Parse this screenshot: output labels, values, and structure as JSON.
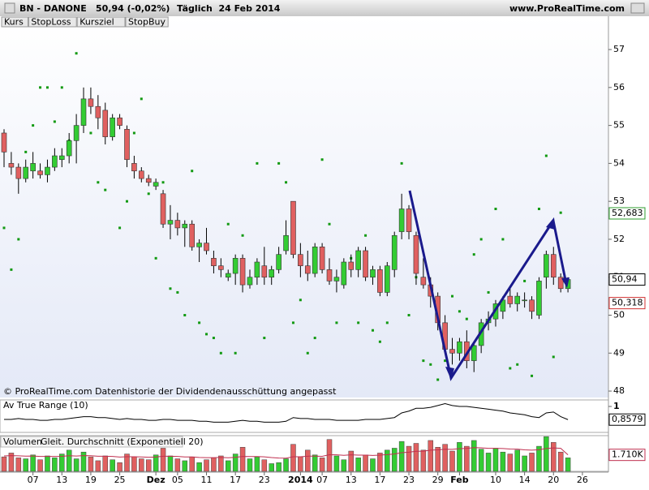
{
  "header": {
    "symbol": "BN - DANONE",
    "quote": "50,94 (-0,02%)",
    "period": "Täglich  24 Feb 2014",
    "site": "www.ProRealTime.com"
  },
  "legend": [
    "Kurs",
    "StopLoss",
    "Kursziel",
    "StopBuy"
  ],
  "footer_note": "© ProRealTime.com  Datenhistorie der Dividendenausschüttung angepasst",
  "chart_data": [
    {
      "type": "candlestick",
      "up_color": "#33cc33",
      "down_color": "#e06060",
      "target_color": "#119911",
      "xlim": [
        -0.56,
        83.6
      ],
      "ylim": [
        47.83,
        57.6
      ],
      "yticks": [
        48,
        49,
        50,
        51,
        52,
        53,
        54,
        55,
        56,
        57
      ],
      "xticks": [
        {
          "value": 4,
          "label": "07"
        },
        {
          "value": 8,
          "label": "13"
        },
        {
          "value": 12,
          "label": "19"
        },
        {
          "value": 16,
          "label": "25"
        },
        {
          "value": 21,
          "label": "Dez"
        },
        {
          "value": 24,
          "label": "05"
        },
        {
          "value": 28,
          "label": "11"
        },
        {
          "value": 32,
          "label": "17"
        },
        {
          "value": 36,
          "label": "23"
        },
        {
          "value": 41,
          "label": "2014"
        },
        {
          "value": 44,
          "label": "07"
        },
        {
          "value": 48,
          "label": "13"
        },
        {
          "value": 52,
          "label": "17"
        },
        {
          "value": 56,
          "label": "23"
        },
        {
          "value": 60,
          "label": "29"
        },
        {
          "value": 63,
          "label": "Feb"
        },
        {
          "value": 68,
          "label": "10"
        },
        {
          "value": 72,
          "label": "14"
        },
        {
          "value": 76,
          "label": "20"
        },
        {
          "value": 80,
          "label": "26"
        }
      ],
      "candles": [
        [
          54.8,
          54.9,
          53.9,
          54.3
        ],
        [
          54.0,
          54.3,
          53.7,
          53.9
        ],
        [
          53.9,
          54.0,
          53.2,
          53.6
        ],
        [
          53.6,
          54.1,
          53.5,
          53.9
        ],
        [
          53.8,
          54.3,
          53.6,
          54.0
        ],
        [
          53.8,
          54.0,
          53.6,
          53.7
        ],
        [
          53.7,
          54.1,
          53.5,
          53.9
        ],
        [
          53.9,
          54.4,
          53.8,
          54.2
        ],
        [
          54.1,
          54.4,
          53.9,
          54.2
        ],
        [
          54.2,
          54.8,
          54.0,
          54.6
        ],
        [
          54.6,
          55.3,
          54.0,
          55.0
        ],
        [
          55.0,
          56.0,
          54.8,
          55.7
        ],
        [
          55.7,
          56.0,
          55.3,
          55.5
        ],
        [
          55.5,
          55.8,
          54.9,
          55.2
        ],
        [
          55.4,
          55.6,
          54.5,
          54.7
        ],
        [
          54.7,
          55.3,
          54.6,
          55.2
        ],
        [
          55.2,
          55.3,
          54.9,
          55.0
        ],
        [
          54.9,
          55.0,
          53.9,
          54.1
        ],
        [
          54.0,
          54.2,
          53.6,
          53.8
        ],
        [
          53.8,
          53.9,
          53.5,
          53.6
        ],
        [
          53.6,
          53.7,
          53.4,
          53.5
        ],
        [
          53.4,
          53.6,
          53.3,
          53.5
        ],
        [
          53.2,
          53.3,
          52.3,
          52.4
        ],
        [
          52.4,
          52.9,
          52.0,
          52.5
        ],
        [
          52.5,
          52.7,
          52.1,
          52.3
        ],
        [
          52.3,
          52.5,
          51.8,
          52.4
        ],
        [
          52.4,
          52.5,
          51.7,
          51.8
        ],
        [
          51.8,
          52.0,
          51.4,
          51.9
        ],
        [
          51.9,
          52.3,
          51.6,
          51.7
        ],
        [
          51.5,
          51.7,
          51.1,
          51.3
        ],
        [
          51.3,
          51.5,
          51.0,
          51.2
        ],
        [
          51.0,
          51.2,
          50.9,
          51.1
        ],
        [
          51.1,
          51.6,
          50.8,
          51.5
        ],
        [
          51.5,
          51.6,
          50.6,
          50.8
        ],
        [
          50.8,
          51.2,
          50.7,
          51.0
        ],
        [
          51.0,
          51.5,
          50.8,
          51.4
        ],
        [
          51.3,
          51.8,
          50.8,
          51.0
        ],
        [
          51.0,
          51.3,
          50.8,
          51.2
        ],
        [
          51.2,
          51.8,
          51.1,
          51.6
        ],
        [
          51.7,
          52.5,
          51.6,
          52.1
        ],
        [
          53.0,
          53.0,
          51.5,
          51.6
        ],
        [
          51.6,
          51.9,
          51.0,
          51.3
        ],
        [
          51.3,
          51.7,
          50.9,
          51.1
        ],
        [
          51.1,
          51.9,
          51.0,
          51.8
        ],
        [
          51.8,
          51.9,
          51.1,
          51.2
        ],
        [
          51.2,
          51.5,
          50.8,
          50.9
        ],
        [
          50.9,
          51.2,
          50.6,
          51.0
        ],
        [
          50.8,
          51.5,
          50.7,
          51.4
        ],
        [
          51.4,
          51.6,
          51.0,
          51.2
        ],
        [
          51.2,
          51.8,
          51.0,
          51.7
        ],
        [
          51.7,
          51.8,
          50.9,
          51.0
        ],
        [
          51.0,
          51.3,
          50.8,
          51.2
        ],
        [
          51.2,
          51.3,
          50.5,
          50.6
        ],
        [
          50.6,
          51.4,
          50.5,
          51.3
        ],
        [
          51.2,
          52.2,
          51.0,
          52.1
        ],
        [
          52.2,
          53.2,
          52.0,
          52.8
        ],
        [
          52.8,
          52.9,
          52.0,
          52.2
        ],
        [
          52.1,
          52.2,
          50.8,
          51.1
        ],
        [
          51.0,
          51.5,
          50.7,
          50.8
        ],
        [
          50.8,
          51.0,
          50.2,
          50.5
        ],
        [
          50.5,
          50.6,
          49.6,
          49.8
        ],
        [
          49.8,
          50.0,
          49.0,
          49.1
        ],
        [
          49.1,
          49.4,
          48.7,
          49.0
        ],
        [
          49.0,
          49.4,
          48.8,
          49.3
        ],
        [
          49.3,
          49.6,
          48.6,
          48.8
        ],
        [
          48.8,
          49.3,
          48.5,
          49.2
        ],
        [
          49.2,
          49.9,
          49.0,
          49.8
        ],
        [
          49.8,
          50.1,
          49.6,
          49.9
        ],
        [
          49.9,
          50.4,
          49.7,
          50.3
        ],
        [
          50.1,
          50.5,
          49.9,
          50.4
        ],
        [
          50.5,
          50.7,
          50.2,
          50.3
        ],
        [
          50.3,
          50.6,
          50.1,
          50.5
        ],
        [
          50.4,
          50.6,
          50.2,
          50.4
        ],
        [
          50.4,
          50.5,
          49.9,
          50.1
        ],
        [
          50.0,
          51.0,
          49.9,
          50.9
        ],
        [
          51.0,
          51.7,
          50.7,
          51.6
        ],
        [
          51.6,
          51.8,
          50.8,
          51.0
        ],
        [
          51.0,
          51.1,
          50.6,
          50.7
        ],
        [
          50.7,
          51.0,
          50.6,
          50.94
        ]
      ],
      "kursziel": [
        52.3,
        51.2,
        52.0,
        54.3,
        55.0,
        56.0,
        56.0,
        55.1,
        56.0,
        54.6,
        56.9,
        55.2,
        54.8,
        53.5,
        53.3,
        null,
        52.3,
        53.0,
        54.8,
        55.7,
        53.2,
        51.5,
        53.5,
        50.7,
        50.6,
        50.0,
        53.8,
        49.8,
        49.5,
        49.4,
        49.0,
        52.4,
        49.0,
        52.1,
        null,
        54.0,
        49.4,
        null,
        54.0,
        53.5,
        49.8,
        50.4,
        49.0,
        49.4,
        54.1,
        52.4,
        49.8,
        51.1,
        51.5,
        49.8,
        52.1,
        49.6,
        49.3,
        49.8,
        null,
        54.0,
        50.0,
        51.0,
        48.8,
        48.7,
        48.3,
        48.8,
        50.5,
        50.1,
        49.9,
        51.6,
        52.0,
        50.6,
        52.8,
        52.0,
        48.6,
        48.7,
        50.9,
        48.4,
        52.8,
        54.2,
        48.9,
        52.7,
        null
      ],
      "markers": [
        {
          "value": 52.683,
          "label": "52,683",
          "color": "#2e9e2e"
        },
        {
          "value": 50.318,
          "label": "50,318",
          "color": "#d03030"
        },
        {
          "value": 50.94,
          "label": "50,94",
          "color": "#000000"
        }
      ]
    },
    {
      "type": "line",
      "title": "Av True Range (10)",
      "color": "#000000",
      "ylim": [
        0.72,
        1.07
      ],
      "yticks": [
        1
      ],
      "values": [
        0.86,
        0.86,
        0.87,
        0.86,
        0.86,
        0.85,
        0.85,
        0.86,
        0.86,
        0.87,
        0.88,
        0.89,
        0.89,
        0.88,
        0.88,
        0.87,
        0.86,
        0.87,
        0.86,
        0.86,
        0.85,
        0.85,
        0.86,
        0.86,
        0.85,
        0.85,
        0.85,
        0.84,
        0.84,
        0.83,
        0.83,
        0.83,
        0.84,
        0.85,
        0.84,
        0.84,
        0.83,
        0.83,
        0.83,
        0.84,
        0.88,
        0.87,
        0.87,
        0.86,
        0.86,
        0.86,
        0.85,
        0.85,
        0.85,
        0.85,
        0.86,
        0.86,
        0.86,
        0.87,
        0.88,
        0.93,
        0.95,
        0.98,
        0.98,
        0.99,
        1.01,
        1.03,
        1.01,
        1.0,
        1.0,
        0.99,
        0.98,
        0.97,
        0.96,
        0.95,
        0.93,
        0.92,
        0.91,
        0.89,
        0.88,
        0.93,
        0.94,
        0.89,
        0.8579
      ],
      "current": {
        "value": 0.8579,
        "label": "0,8579"
      }
    },
    {
      "type": "bar",
      "title": "Volumen",
      "avg_title": "Gleit. Durchschnitt (Exponentiell 20)",
      "avg_color": "#c03050",
      "ylim": [
        0,
        3700
      ],
      "values": [
        1500,
        1900,
        1400,
        1300,
        1700,
        1200,
        1600,
        1400,
        1800,
        2200,
        1300,
        2000,
        1500,
        1100,
        1600,
        1200,
        900,
        1800,
        1500,
        1300,
        1200,
        1700,
        2400,
        1600,
        1300,
        1100,
        1500,
        900,
        1200,
        1400,
        1600,
        1100,
        1800,
        2500,
        1300,
        1500,
        1200,
        800,
        900,
        1300,
        2800,
        1500,
        2200,
        1700,
        1400,
        3300,
        1600,
        1200,
        2100,
        1400,
        1700,
        1300,
        1900,
        2200,
        2400,
        3100,
        2600,
        2900,
        2200,
        3200,
        2500,
        2800,
        2100,
        3000,
        2600,
        3200,
        2300,
        1900,
        2400,
        2000,
        1800,
        2200,
        1600,
        1900,
        2600,
        3600,
        3000,
        2000,
        1400
      ],
      "ema": [
        1600,
        1630,
        1610,
        1580,
        1590,
        1550,
        1550,
        1540,
        1560,
        1620,
        1590,
        1630,
        1620,
        1570,
        1570,
        1540,
        1480,
        1510,
        1510,
        1490,
        1460,
        1480,
        1570,
        1570,
        1540,
        1490,
        1490,
        1440,
        1420,
        1420,
        1440,
        1410,
        1450,
        1550,
        1530,
        1530,
        1500,
        1430,
        1380,
        1370,
        1510,
        1510,
        1570,
        1580,
        1560,
        1720,
        1710,
        1660,
        1710,
        1680,
        1680,
        1650,
        1680,
        1730,
        1800,
        1930,
        1990,
        2080,
        2090,
        2200,
        2230,
        2290,
        2280,
        2350,
        2380,
        2460,
        2440,
        2390,
        2390,
        2360,
        2310,
        2300,
        2230,
        2200,
        2240,
        2370,
        2430,
        2390,
        1710
      ],
      "current": {
        "value": 1710,
        "label": "1.710K"
      }
    }
  ]
}
